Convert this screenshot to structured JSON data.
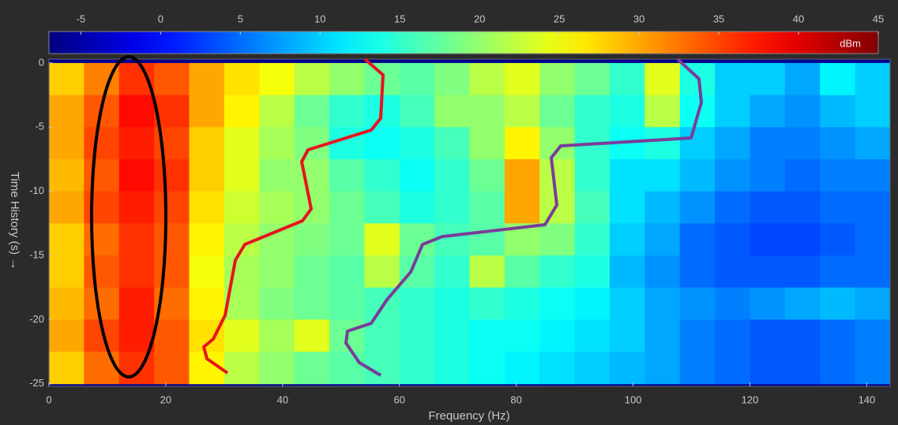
{
  "chart_data": {
    "type": "heatmap",
    "xlabel": "Frequency (Hz)",
    "ylabel": "Time History (s) →",
    "colorbar_label": "dBm",
    "colormap": "jet",
    "clim": [
      -7,
      45
    ],
    "cticks": [
      -5,
      0,
      5,
      10,
      15,
      20,
      25,
      30,
      35,
      40,
      45
    ],
    "xlim": [
      0,
      144
    ],
    "ylim": [
      -25.2,
      0.3
    ],
    "xticks": [
      0,
      20,
      40,
      60,
      80,
      100,
      120,
      140
    ],
    "yticks": [
      0,
      -5,
      -10,
      -15,
      -20,
      -25
    ],
    "x": [
      0,
      6,
      12,
      18,
      24,
      30,
      36,
      42,
      48,
      54,
      60,
      66,
      72,
      78,
      84,
      90,
      96,
      102,
      108,
      114,
      120,
      126,
      132,
      138,
      144
    ],
    "y": [
      0,
      -2.5,
      -5,
      -7.5,
      -10,
      -12.5,
      -15,
      -17.5,
      -20,
      -22.5,
      -25
    ],
    "z": [
      [
        28,
        32,
        36,
        34,
        30,
        27,
        25,
        22,
        20,
        18,
        17,
        19,
        22,
        24,
        20,
        18,
        15,
        24,
        14,
        10,
        10,
        8,
        12,
        10
      ],
      [
        30,
        34,
        38,
        36,
        30,
        26,
        22,
        18,
        15,
        14,
        16,
        20,
        20,
        22,
        18,
        15,
        14,
        22,
        13,
        10,
        8,
        7,
        9,
        10
      ],
      [
        30,
        35,
        37,
        35,
        28,
        24,
        21,
        19,
        14,
        13,
        14,
        16,
        20,
        26,
        20,
        15,
        13,
        14,
        10,
        8,
        6,
        6,
        7,
        8
      ],
      [
        29,
        34,
        38,
        36,
        28,
        24,
        20,
        20,
        17,
        15,
        13,
        15,
        18,
        30,
        22,
        15,
        11,
        11,
        9,
        7,
        6,
        5,
        6,
        6
      ],
      [
        30,
        35,
        37,
        35,
        27,
        23,
        21,
        20,
        18,
        16,
        14,
        15,
        17,
        30,
        22,
        16,
        11,
        9,
        7,
        5,
        4,
        4,
        5,
        5
      ],
      [
        28,
        33,
        36,
        34,
        26,
        22,
        20,
        19,
        18,
        24,
        18,
        16,
        17,
        20,
        19,
        15,
        10,
        8,
        5,
        4,
        3,
        3,
        4,
        5
      ],
      [
        28,
        34,
        36,
        34,
        25,
        21,
        20,
        18,
        17,
        22,
        17,
        15,
        22,
        17,
        15,
        14,
        9,
        7,
        5,
        4,
        4,
        4,
        5,
        5
      ],
      [
        29,
        33,
        37,
        33,
        26,
        21,
        19,
        18,
        17,
        16,
        15,
        14,
        15,
        14,
        13,
        12,
        10,
        8,
        7,
        6,
        7,
        8,
        9,
        8
      ],
      [
        30,
        35,
        37,
        34,
        27,
        24,
        21,
        24,
        18,
        16,
        15,
        14,
        13,
        13,
        12,
        11,
        10,
        8,
        6,
        5,
        4,
        4,
        5,
        6
      ],
      [
        28,
        33,
        36,
        34,
        26,
        22,
        20,
        18,
        17,
        16,
        15,
        14,
        13,
        12,
        11,
        10,
        9,
        8,
        6,
        5,
        4,
        4,
        5,
        6
      ]
    ]
  }
}
